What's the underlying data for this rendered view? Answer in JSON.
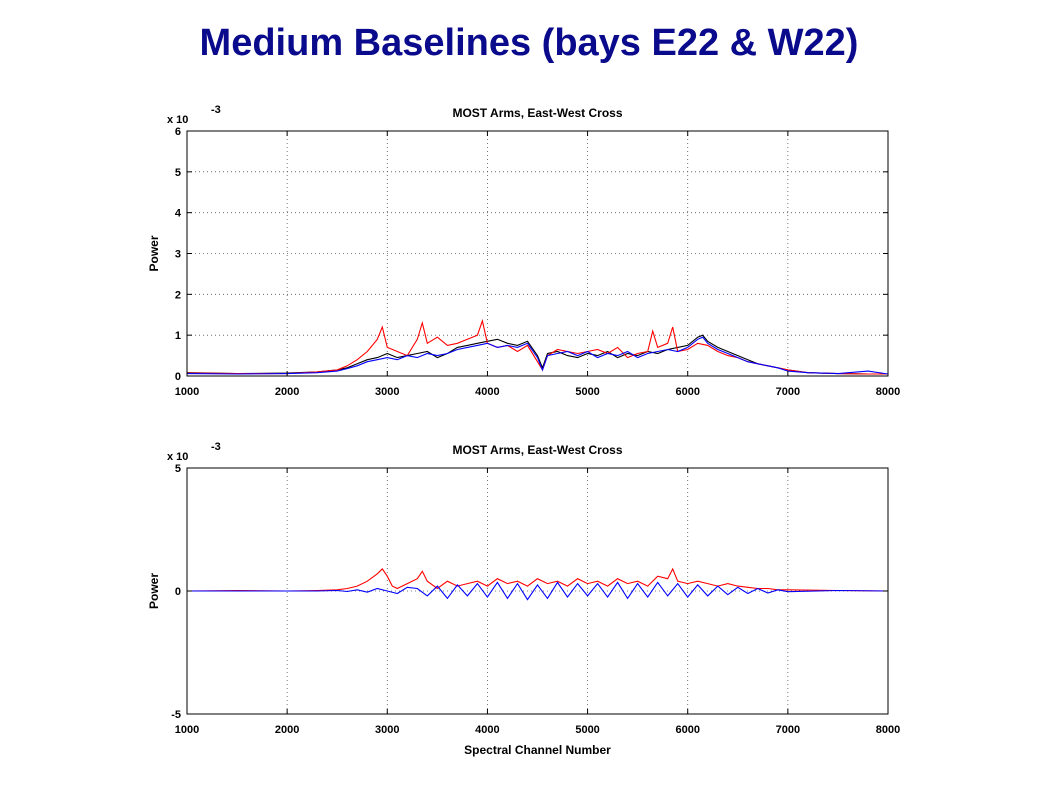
{
  "slide_title": "Medium Baselines (bays E22 & W22)",
  "chart_data": [
    {
      "type": "line",
      "title": "MOST Arms, East-West Cross",
      "xlabel": "",
      "ylabel": "Power",
      "y_multiplier": "x 10",
      "y_exponent": "-3",
      "xlim": [
        1000,
        8000
      ],
      "ylim": [
        0,
        6
      ],
      "xticks": [
        1000,
        2000,
        3000,
        4000,
        5000,
        6000,
        7000,
        8000
      ],
      "yticks": [
        0,
        1,
        2,
        3,
        4,
        5,
        6
      ],
      "grid": true,
      "series": [
        {
          "color": "#000000",
          "x": [
            1000,
            1500,
            2000,
            2300,
            2500,
            2600,
            2700,
            2800,
            2900,
            3000,
            3100,
            3200,
            3300,
            3400,
            3500,
            3600,
            3700,
            3800,
            3900,
            4000,
            4100,
            4200,
            4300,
            4400,
            4500,
            4550,
            4600,
            4700,
            4800,
            4900,
            5000,
            5100,
            5200,
            5300,
            5400,
            5500,
            5600,
            5700,
            5800,
            5900,
            6000,
            6100,
            6150,
            6200,
            6300,
            6400,
            6500,
            6600,
            6700,
            6800,
            6900,
            7000,
            7200,
            7500,
            7800,
            8000
          ],
          "y": [
            0.08,
            0.06,
            0.07,
            0.1,
            0.15,
            0.2,
            0.3,
            0.4,
            0.45,
            0.55,
            0.45,
            0.5,
            0.55,
            0.6,
            0.45,
            0.55,
            0.7,
            0.75,
            0.8,
            0.85,
            0.9,
            0.8,
            0.75,
            0.85,
            0.5,
            0.2,
            0.55,
            0.6,
            0.5,
            0.45,
            0.55,
            0.5,
            0.6,
            0.45,
            0.55,
            0.5,
            0.6,
            0.55,
            0.65,
            0.7,
            0.75,
            0.95,
            1.0,
            0.85,
            0.7,
            0.6,
            0.5,
            0.4,
            0.3,
            0.25,
            0.2,
            0.15,
            0.08,
            0.06,
            0.05,
            0.05
          ]
        },
        {
          "color": "#ff0000",
          "x": [
            1000,
            1500,
            2000,
            2300,
            2500,
            2600,
            2700,
            2800,
            2900,
            2950,
            3000,
            3100,
            3200,
            3300,
            3350,
            3400,
            3500,
            3600,
            3700,
            3800,
            3900,
            3950,
            4000,
            4100,
            4200,
            4300,
            4400,
            4500,
            4550,
            4600,
            4700,
            4800,
            4900,
            5000,
            5100,
            5200,
            5300,
            5400,
            5500,
            5600,
            5650,
            5700,
            5800,
            5850,
            5900,
            6000,
            6100,
            6200,
            6300,
            6400,
            6500,
            6600,
            6700,
            6800,
            6900,
            7000,
            7200,
            7500,
            7800,
            8000
          ],
          "y": [
            0.07,
            0.06,
            0.06,
            0.1,
            0.15,
            0.25,
            0.4,
            0.6,
            0.9,
            1.2,
            0.7,
            0.6,
            0.5,
            0.9,
            1.3,
            0.8,
            0.95,
            0.75,
            0.8,
            0.9,
            1.0,
            1.35,
            0.8,
            0.7,
            0.75,
            0.6,
            0.75,
            0.35,
            0.15,
            0.5,
            0.65,
            0.6,
            0.55,
            0.6,
            0.65,
            0.55,
            0.7,
            0.45,
            0.55,
            0.6,
            1.1,
            0.7,
            0.8,
            1.2,
            0.6,
            0.65,
            0.8,
            0.75,
            0.6,
            0.5,
            0.45,
            0.35,
            0.3,
            0.25,
            0.2,
            0.15,
            0.08,
            0.06,
            0.05,
            0.05
          ]
        },
        {
          "color": "#0000ff",
          "x": [
            1000,
            1500,
            2000,
            2300,
            2500,
            2600,
            2700,
            2800,
            2900,
            3000,
            3100,
            3200,
            3300,
            3400,
            3500,
            3600,
            3700,
            3800,
            3900,
            4000,
            4100,
            4200,
            4300,
            4400,
            4500,
            4550,
            4600,
            4700,
            4800,
            4900,
            5000,
            5100,
            5200,
            5300,
            5400,
            5500,
            5600,
            5700,
            5800,
            5900,
            6000,
            6100,
            6150,
            6200,
            6300,
            6400,
            6500,
            6600,
            6700,
            6800,
            6900,
            7000,
            7200,
            7500,
            7800,
            8000
          ],
          "y": [
            0.06,
            0.05,
            0.06,
            0.08,
            0.12,
            0.18,
            0.25,
            0.35,
            0.4,
            0.45,
            0.4,
            0.5,
            0.45,
            0.55,
            0.5,
            0.55,
            0.65,
            0.7,
            0.75,
            0.8,
            0.7,
            0.75,
            0.7,
            0.8,
            0.45,
            0.15,
            0.5,
            0.55,
            0.6,
            0.5,
            0.6,
            0.45,
            0.55,
            0.5,
            0.6,
            0.45,
            0.55,
            0.6,
            0.65,
            0.6,
            0.7,
            0.9,
            0.95,
            0.8,
            0.65,
            0.55,
            0.45,
            0.35,
            0.3,
            0.25,
            0.2,
            0.12,
            0.08,
            0.06,
            0.12,
            0.05
          ]
        }
      ]
    },
    {
      "type": "line",
      "title": "MOST Arms, East-West Cross",
      "xlabel": "Spectral Channel Number",
      "ylabel": "Power",
      "y_multiplier": "x 10",
      "y_exponent": "-3",
      "xlim": [
        1000,
        8000
      ],
      "ylim": [
        -5,
        5
      ],
      "xticks": [
        1000,
        2000,
        3000,
        4000,
        5000,
        6000,
        7000,
        8000
      ],
      "yticks": [
        -5,
        0,
        5
      ],
      "grid": true,
      "series": [
        {
          "color": "#ff0000",
          "x": [
            1000,
            1500,
            2000,
            2300,
            2500,
            2600,
            2700,
            2800,
            2900,
            2950,
            3000,
            3050,
            3100,
            3200,
            3300,
            3350,
            3400,
            3500,
            3600,
            3700,
            3800,
            3900,
            4000,
            4100,
            4200,
            4300,
            4400,
            4500,
            4600,
            4700,
            4800,
            4900,
            5000,
            5100,
            5200,
            5300,
            5400,
            5500,
            5600,
            5700,
            5800,
            5850,
            5900,
            6000,
            6100,
            6200,
            6300,
            6400,
            6500,
            6600,
            6700,
            6800,
            6900,
            7000,
            7500,
            8000
          ],
          "y": [
            0.0,
            0.02,
            0.0,
            0.02,
            0.05,
            0.1,
            0.2,
            0.4,
            0.7,
            0.9,
            0.6,
            0.2,
            0.1,
            0.3,
            0.5,
            0.8,
            0.4,
            0.1,
            0.4,
            0.2,
            0.3,
            0.4,
            0.2,
            0.5,
            0.3,
            0.4,
            0.2,
            0.5,
            0.3,
            0.4,
            0.2,
            0.5,
            0.3,
            0.4,
            0.2,
            0.5,
            0.3,
            0.4,
            0.2,
            0.6,
            0.5,
            0.9,
            0.4,
            0.3,
            0.4,
            0.3,
            0.2,
            0.3,
            0.2,
            0.15,
            0.1,
            0.1,
            0.05,
            0.05,
            0.02,
            0.0
          ]
        },
        {
          "color": "#0000ff",
          "x": [
            1000,
            1500,
            2000,
            2300,
            2500,
            2600,
            2700,
            2800,
            2900,
            3000,
            3100,
            3200,
            3300,
            3400,
            3500,
            3600,
            3700,
            3800,
            3900,
            4000,
            4100,
            4200,
            4300,
            4400,
            4500,
            4600,
            4700,
            4800,
            4900,
            5000,
            5100,
            5200,
            5300,
            5400,
            5500,
            5600,
            5700,
            5800,
            5900,
            6000,
            6100,
            6200,
            6300,
            6400,
            6500,
            6600,
            6700,
            6800,
            6900,
            7000,
            7500,
            8000
          ],
          "y": [
            0.0,
            0.0,
            0.0,
            0.0,
            0.02,
            -0.02,
            0.05,
            -0.05,
            0.1,
            0.0,
            -0.1,
            0.15,
            0.1,
            -0.2,
            0.2,
            -0.3,
            0.25,
            -0.2,
            0.3,
            -0.25,
            0.35,
            -0.3,
            0.3,
            -0.35,
            0.25,
            -0.3,
            0.35,
            -0.25,
            0.3,
            -0.2,
            0.3,
            -0.25,
            0.35,
            -0.3,
            0.3,
            -0.25,
            0.35,
            -0.2,
            0.3,
            -0.25,
            0.25,
            -0.2,
            0.2,
            -0.15,
            0.15,
            -0.1,
            0.1,
            -0.08,
            0.05,
            -0.03,
            0.02,
            0.0
          ]
        }
      ]
    }
  ]
}
